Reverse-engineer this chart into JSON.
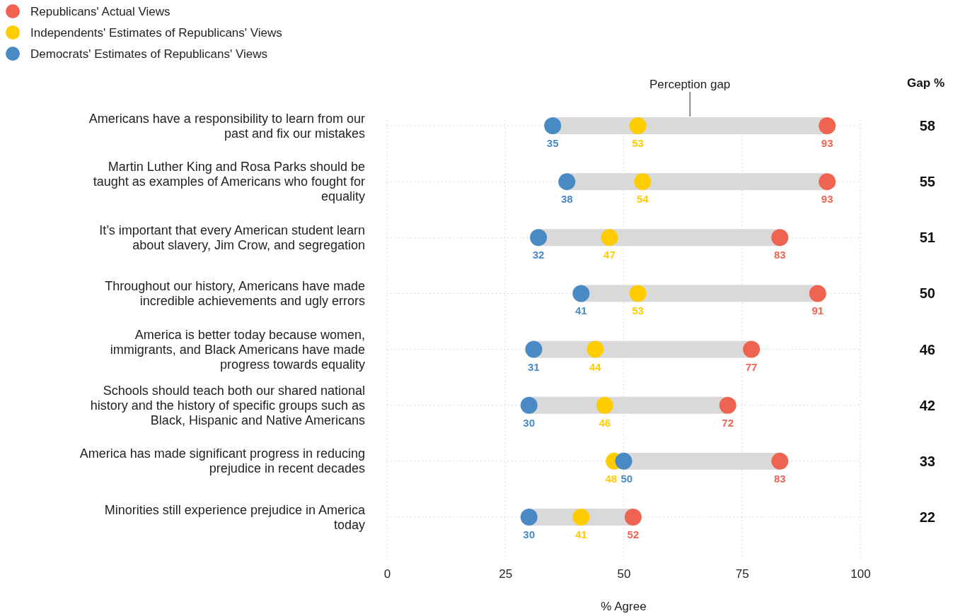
{
  "chart_data": {
    "type": "scatter",
    "orientation": "horizontal",
    "categories": [
      "Americans have a responsibility to learn from our past and fix our mistakes",
      "Martin Luther King and Rosa Parks should be taught as examples of Americans who fought for equality",
      "It’s important that every American student learn about slavery, Jim Crow, and segregation",
      "Throughout our history, Americans have made incredible achievements and ugly errors",
      "America is better today because women, immigrants, and Black Americans have made progress towards equality",
      "Schools should teach both our shared national history and the history of specific groups such as Black, Hispanic and Native Americans",
      "America has made significant progress in reducing prejudice in recent decades",
      "Minorities still experience prejudice in America today"
    ],
    "series": [
      {
        "type": "bar",
        "name": "Perception gap",
        "color": "#d9d9d9",
        "base": [
          35,
          38,
          32,
          41,
          31,
          30,
          50,
          30
        ],
        "values": [
          58,
          55,
          51,
          50,
          46,
          42,
          33,
          22
        ],
        "value_labels": [
          "58",
          "55",
          "51",
          "50",
          "46",
          "42",
          "33",
          "22"
        ]
      },
      {
        "name": "Republicans' Actual Views",
        "color": "#ef6450",
        "values": [
          93,
          93,
          83,
          91,
          77,
          72,
          83,
          52
        ],
        "value_labels": [
          "93",
          "93",
          "83",
          "91",
          "77",
          "72",
          "83",
          "52"
        ]
      },
      {
        "name": "Independents' Estimates of Republicans' Views",
        "color": "#ffcc00",
        "values": [
          53,
          54,
          47,
          53,
          44,
          46,
          48,
          41
        ],
        "value_labels": [
          "53",
          "54",
          "47",
          "53",
          "44",
          "46",
          "48",
          "41"
        ]
      },
      {
        "name": "Democrats' Estimates of Republicans' Views",
        "color": "#4a8ac4",
        "values": [
          35,
          38,
          32,
          41,
          31,
          30,
          50,
          30
        ],
        "value_labels": [
          "35",
          "38",
          "32",
          "41",
          "31",
          "30",
          "50",
          "30"
        ]
      }
    ],
    "xlim": [
      0,
      100
    ],
    "xticks": [
      0,
      25,
      50,
      75,
      100
    ],
    "xlabel": "% Agree",
    "grid": true,
    "legend": "top left",
    "marker": "circle",
    "annotations": [
      "Gap %"
    ]
  }
}
